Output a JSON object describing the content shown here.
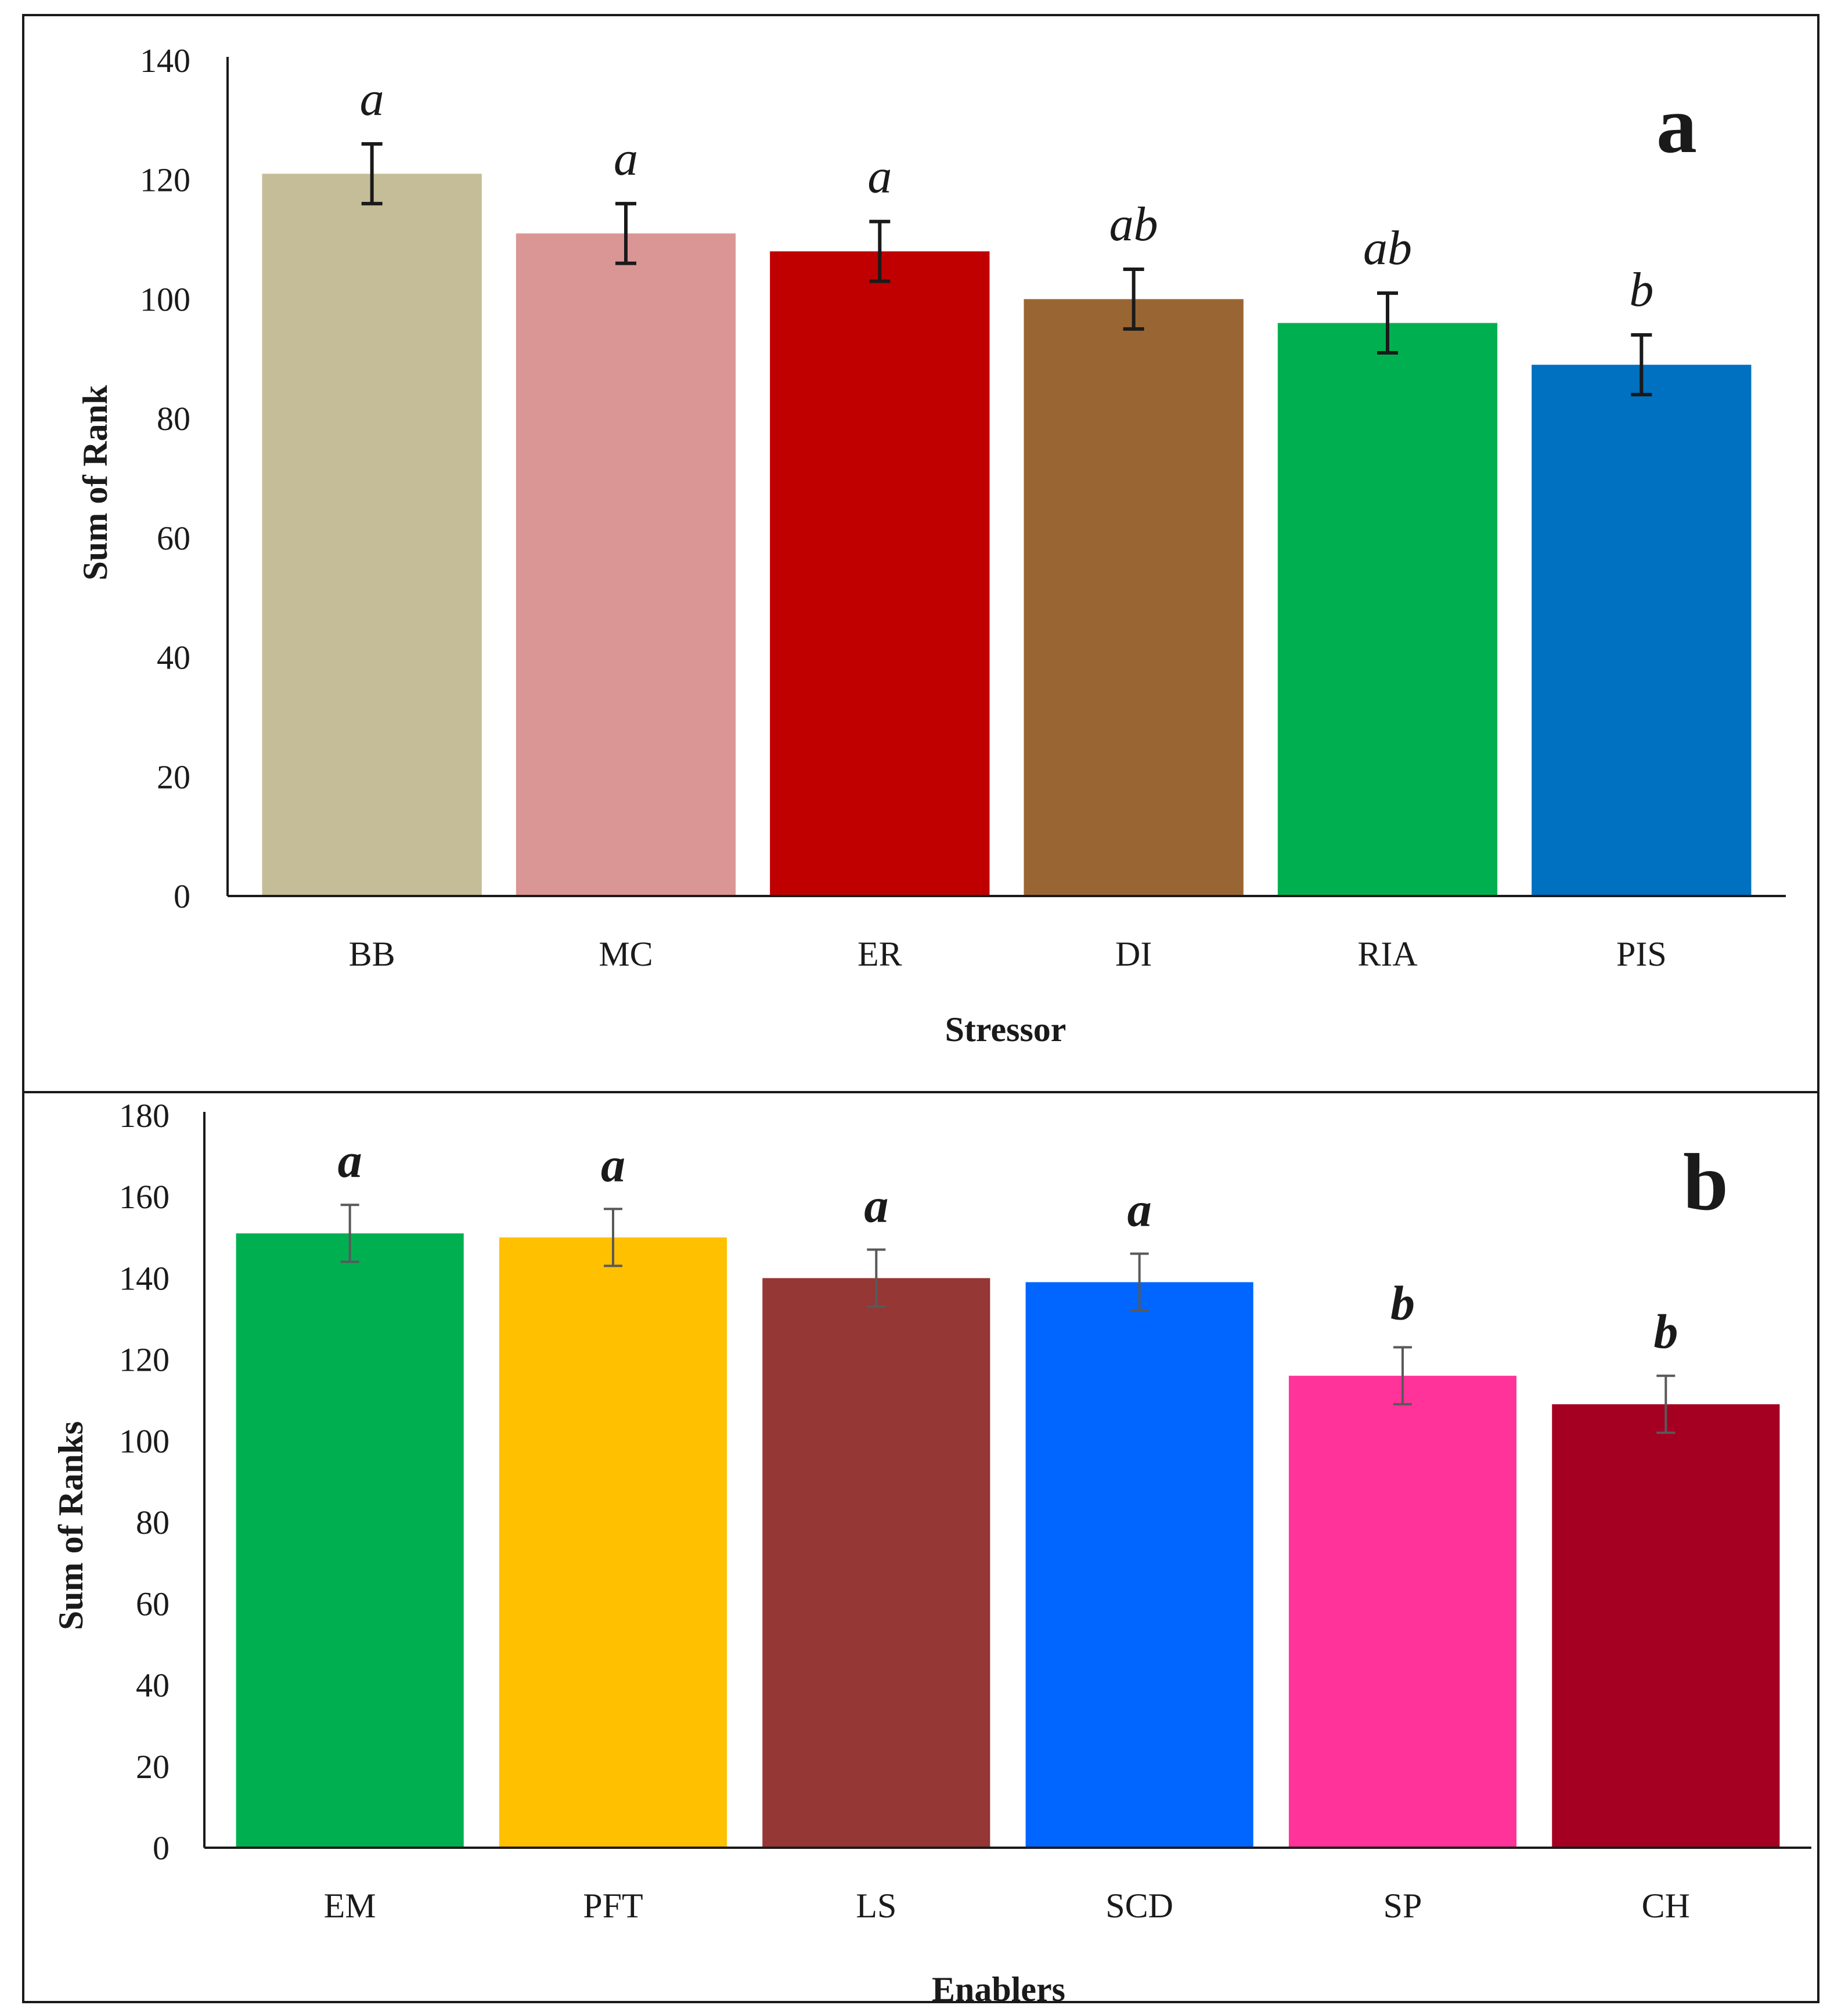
{
  "chart_data": [
    {
      "type": "bar",
      "panel_label": "a",
      "xlabel": "Stressor",
      "ylabel": "Sum of Rank",
      "ylim": [
        0,
        140
      ],
      "yticks": [
        0,
        20,
        40,
        60,
        80,
        100,
        120,
        140
      ],
      "categories": [
        "BB",
        "MC",
        "ER",
        "DI",
        "RIA",
        "PIS"
      ],
      "values": [
        121,
        111,
        108,
        100,
        96,
        89
      ],
      "errors": [
        5,
        5,
        5,
        5,
        5,
        5
      ],
      "significance": [
        "a",
        "a",
        "a",
        "ab",
        "ab",
        "b"
      ],
      "colors": [
        "#C4BD97",
        "#D99694",
        "#C00000",
        "#996633",
        "#00B050",
        "#0070C0"
      ],
      "grid": false
    },
    {
      "type": "bar",
      "panel_label": "b",
      "xlabel": "Enablers",
      "ylabel": "Sum of Ranks",
      "ylim": [
        0,
        180
      ],
      "yticks": [
        0,
        20,
        40,
        60,
        80,
        100,
        120,
        140,
        160,
        180
      ],
      "categories": [
        "EM",
        "PFT",
        "LS",
        "SCD",
        "SP",
        "CH"
      ],
      "values": [
        151,
        150,
        140,
        139,
        116,
        109
      ],
      "errors": [
        7,
        7,
        7,
        7,
        7,
        7
      ],
      "significance": [
        "a",
        "a",
        "a",
        "a",
        "b",
        "b"
      ],
      "colors": [
        "#00B050",
        "#FFC000",
        "#953735",
        "#0066FF",
        "#FF3399",
        "#A50021"
      ],
      "grid": false
    }
  ]
}
